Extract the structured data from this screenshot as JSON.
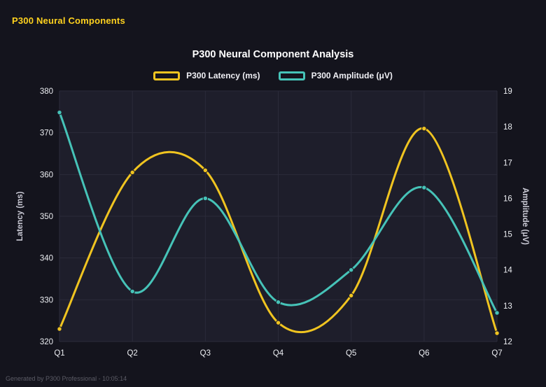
{
  "page": {
    "title": "P300 Neural Components",
    "footer": "Generated by P300 Professional - 10:05:14"
  },
  "chart_data": {
    "type": "line",
    "title": "P300 Neural Component Analysis",
    "categories": [
      "Q1",
      "Q2",
      "Q3",
      "Q4",
      "Q5",
      "Q6",
      "Q7"
    ],
    "series": [
      {
        "name": "P300 Latency (ms)",
        "axis": "left",
        "color": "#f0c420",
        "values": [
          323,
          360.5,
          361,
          324.5,
          331,
          371,
          322
        ]
      },
      {
        "name": "P300 Amplitude (μV)",
        "axis": "right",
        "color": "#46c3b8",
        "values": [
          18.4,
          13.4,
          16.0,
          13.1,
          14.0,
          16.3,
          12.8
        ]
      }
    ],
    "left_axis": {
      "label": "Latency (ms)",
      "min": 320,
      "max": 380,
      "step": 10
    },
    "right_axis": {
      "label": "Amplitude (μV)",
      "min": 12,
      "max": 19,
      "step": 1
    },
    "grid": true,
    "legend_position": "top",
    "smooth": true
  },
  "colors": {
    "background": "#14141d",
    "plot_background": "#1e1e2b",
    "grid": "#2b2b3a",
    "title_yellow": "#ffd21e",
    "chart_title": "#ffffff",
    "tick_text": "#eceef2",
    "axis_title": "#c9c9d4",
    "footer_text": "#5c5c66"
  }
}
